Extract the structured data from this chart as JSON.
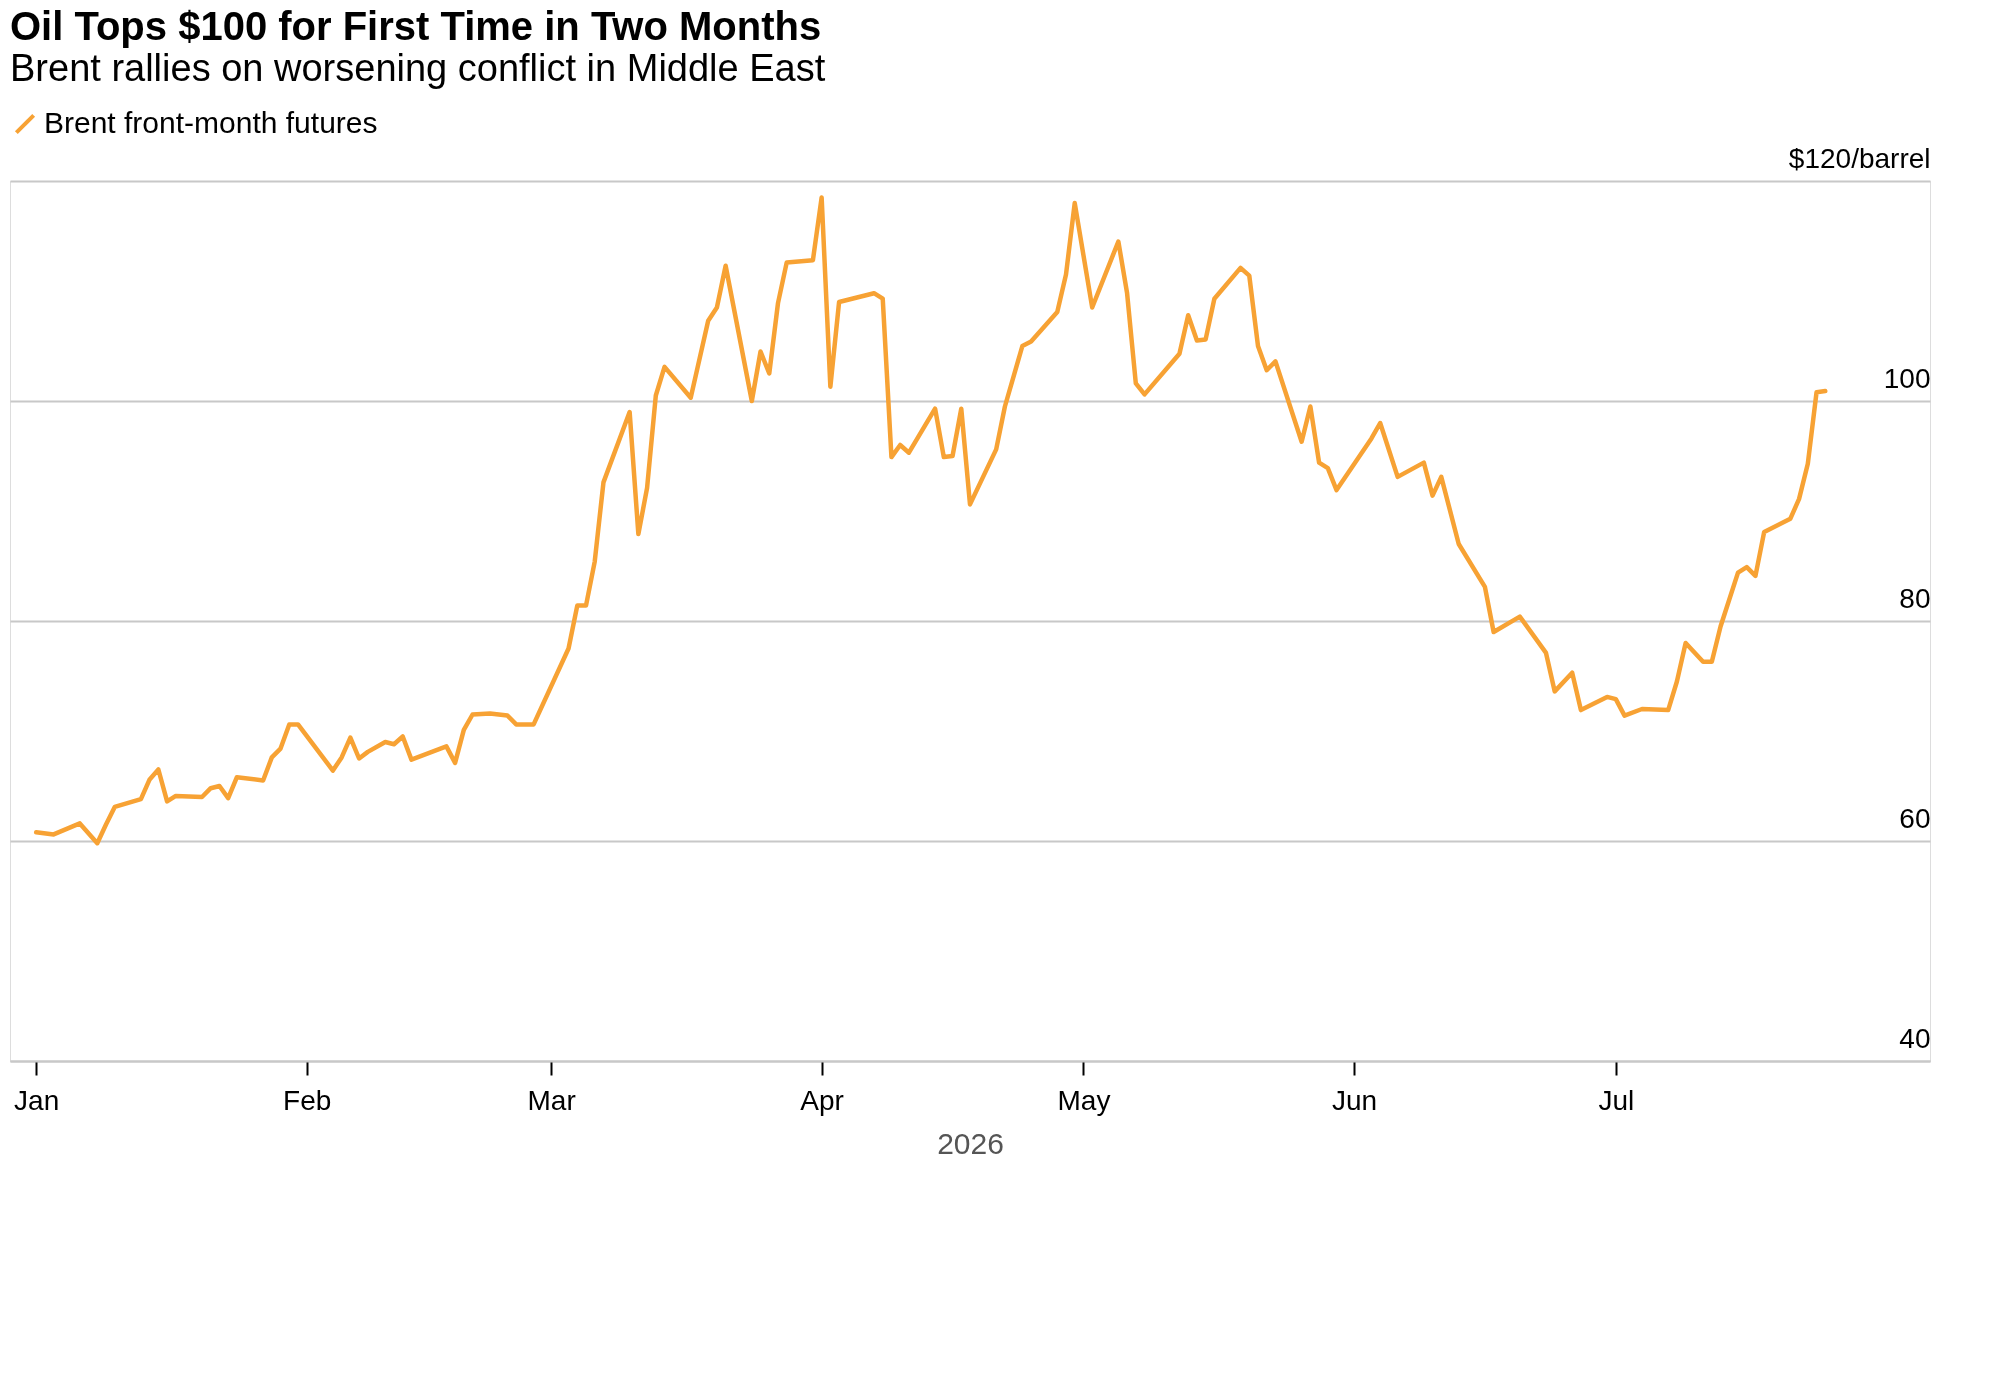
{
  "chart_data": {
    "type": "line",
    "title": "Oil Tops $100 for First Time in Two Months",
    "subtitle": "Brent rallies on worsening conflict in Middle East",
    "xlabel": "2026",
    "x": [
      "2026-01-01",
      "2026-01-03",
      "2026-01-06",
      "2026-01-08",
      "2026-01-09",
      "2026-01-10",
      "2026-01-13",
      "2026-01-14",
      "2026-01-15",
      "2026-01-16",
      "2026-01-17",
      "2026-01-20",
      "2026-01-21",
      "2026-01-22",
      "2026-01-23",
      "2026-01-24",
      "2026-01-27",
      "2026-01-28",
      "2026-01-29",
      "2026-01-30",
      "2026-01-31",
      "2026-02-04",
      "2026-02-05",
      "2026-02-06",
      "2026-02-07",
      "2026-02-08",
      "2026-02-10",
      "2026-02-11",
      "2026-02-12",
      "2026-02-13",
      "2026-02-17",
      "2026-02-18",
      "2026-02-19",
      "2026-02-20",
      "2026-02-22",
      "2026-02-24",
      "2026-02-25",
      "2026-02-27",
      "2026-03-03",
      "2026-03-04",
      "2026-03-05",
      "2026-03-06",
      "2026-03-07",
      "2026-03-10",
      "2026-03-11",
      "2026-03-12",
      "2026-03-13",
      "2026-03-14",
      "2026-03-17",
      "2026-03-19",
      "2026-03-20",
      "2026-03-21",
      "2026-03-24",
      "2026-03-25",
      "2026-03-26",
      "2026-03-27",
      "2026-03-28",
      "2026-03-31",
      "2026-04-01",
      "2026-04-02",
      "2026-04-03",
      "2026-04-07",
      "2026-04-08",
      "2026-04-09",
      "2026-04-10",
      "2026-04-11",
      "2026-04-14",
      "2026-04-15",
      "2026-04-16",
      "2026-04-17",
      "2026-04-18",
      "2026-04-21",
      "2026-04-22",
      "2026-04-24",
      "2026-04-25",
      "2026-04-28",
      "2026-04-29",
      "2026-04-30",
      "2026-05-02",
      "2026-05-05",
      "2026-05-06",
      "2026-05-07",
      "2026-05-08",
      "2026-05-12",
      "2026-05-13",
      "2026-05-14",
      "2026-05-15",
      "2026-05-16",
      "2026-05-19",
      "2026-05-20",
      "2026-05-21",
      "2026-05-22",
      "2026-05-23",
      "2026-05-26",
      "2026-05-27",
      "2026-05-28",
      "2026-05-29",
      "2026-05-30",
      "2026-06-03",
      "2026-06-04",
      "2026-06-06",
      "2026-06-09",
      "2026-06-10",
      "2026-06-11",
      "2026-06-13",
      "2026-06-16",
      "2026-06-17",
      "2026-06-20",
      "2026-06-23",
      "2026-06-24",
      "2026-06-26",
      "2026-06-27",
      "2026-06-30",
      "2026-07-01",
      "2026-07-02",
      "2026-07-04",
      "2026-07-07",
      "2026-07-08",
      "2026-07-09",
      "2026-07-11",
      "2026-07-12",
      "2026-07-13",
      "2026-07-15",
      "2026-07-16",
      "2026-07-17",
      "2026-07-18",
      "2026-07-21",
      "2026-07-22",
      "2026-07-23",
      "2026-07-24",
      "2026-07-25"
    ],
    "series": [
      {
        "name": "Brent front-month futures",
        "color": "#f7a234",
        "values": [
          60.8,
          60.6,
          61.6,
          59.8,
          61.5,
          63.1,
          63.8,
          65.6,
          66.5,
          63.6,
          64.1,
          64.0,
          64.8,
          65.0,
          63.9,
          65.8,
          65.5,
          67.6,
          68.4,
          70.6,
          70.6,
          66.4,
          67.6,
          69.4,
          67.5,
          68.1,
          69.0,
          68.8,
          69.5,
          67.4,
          68.6,
          67.1,
          70.1,
          71.5,
          71.6,
          71.4,
          70.6,
          70.6,
          77.5,
          81.4,
          81.4,
          85.4,
          92.6,
          99.0,
          87.9,
          92.1,
          100.5,
          103.1,
          100.3,
          107.3,
          108.5,
          112.3,
          100.0,
          104.5,
          102.5,
          108.9,
          112.6,
          112.8,
          118.5,
          101.3,
          109.0,
          109.8,
          109.3,
          94.9,
          96.0,
          95.3,
          99.3,
          94.9,
          95.0,
          99.3,
          90.6,
          95.6,
          99.5,
          105.0,
          105.4,
          108.1,
          111.5,
          118.0,
          108.5,
          114.5,
          109.8,
          101.6,
          100.6,
          104.3,
          107.8,
          105.5,
          105.6,
          109.3,
          112.1,
          111.4,
          105.0,
          102.8,
          103.6,
          96.3,
          99.5,
          94.4,
          93.9,
          91.9,
          96.6,
          98.0,
          93.1,
          94.4,
          91.4,
          93.1,
          87.0,
          83.1,
          79.0,
          80.4,
          77.1,
          73.6,
          75.3,
          71.9,
          73.1,
          72.9,
          71.4,
          72.0,
          71.9,
          74.5,
          78.0,
          76.3,
          76.3,
          79.5,
          84.4,
          84.9,
          84.1,
          88.1,
          89.3,
          91.1,
          94.3,
          100.8,
          100.9
        ]
      }
    ],
    "xlim": [
      "2025-12-29",
      "2026-08-06"
    ],
    "xticks": [
      {
        "value": "2026-01-01",
        "label": "Jan"
      },
      {
        "value": "2026-02-01",
        "label": "Feb"
      },
      {
        "value": "2026-03-01",
        "label": "Mar"
      },
      {
        "value": "2026-04-01",
        "label": "Apr"
      },
      {
        "value": "2026-05-01",
        "label": "May"
      },
      {
        "value": "2026-06-01",
        "label": "Jun"
      },
      {
        "value": "2026-07-01",
        "label": "Jul"
      }
    ],
    "ylim": [
      40,
      120
    ],
    "yticks": [
      40,
      60,
      80,
      100,
      {
        "value": 120,
        "label": "$120/barrel"
      }
    ],
    "grid": "y",
    "legend": "top left",
    "marker": "none",
    "line_style": "solid"
  }
}
